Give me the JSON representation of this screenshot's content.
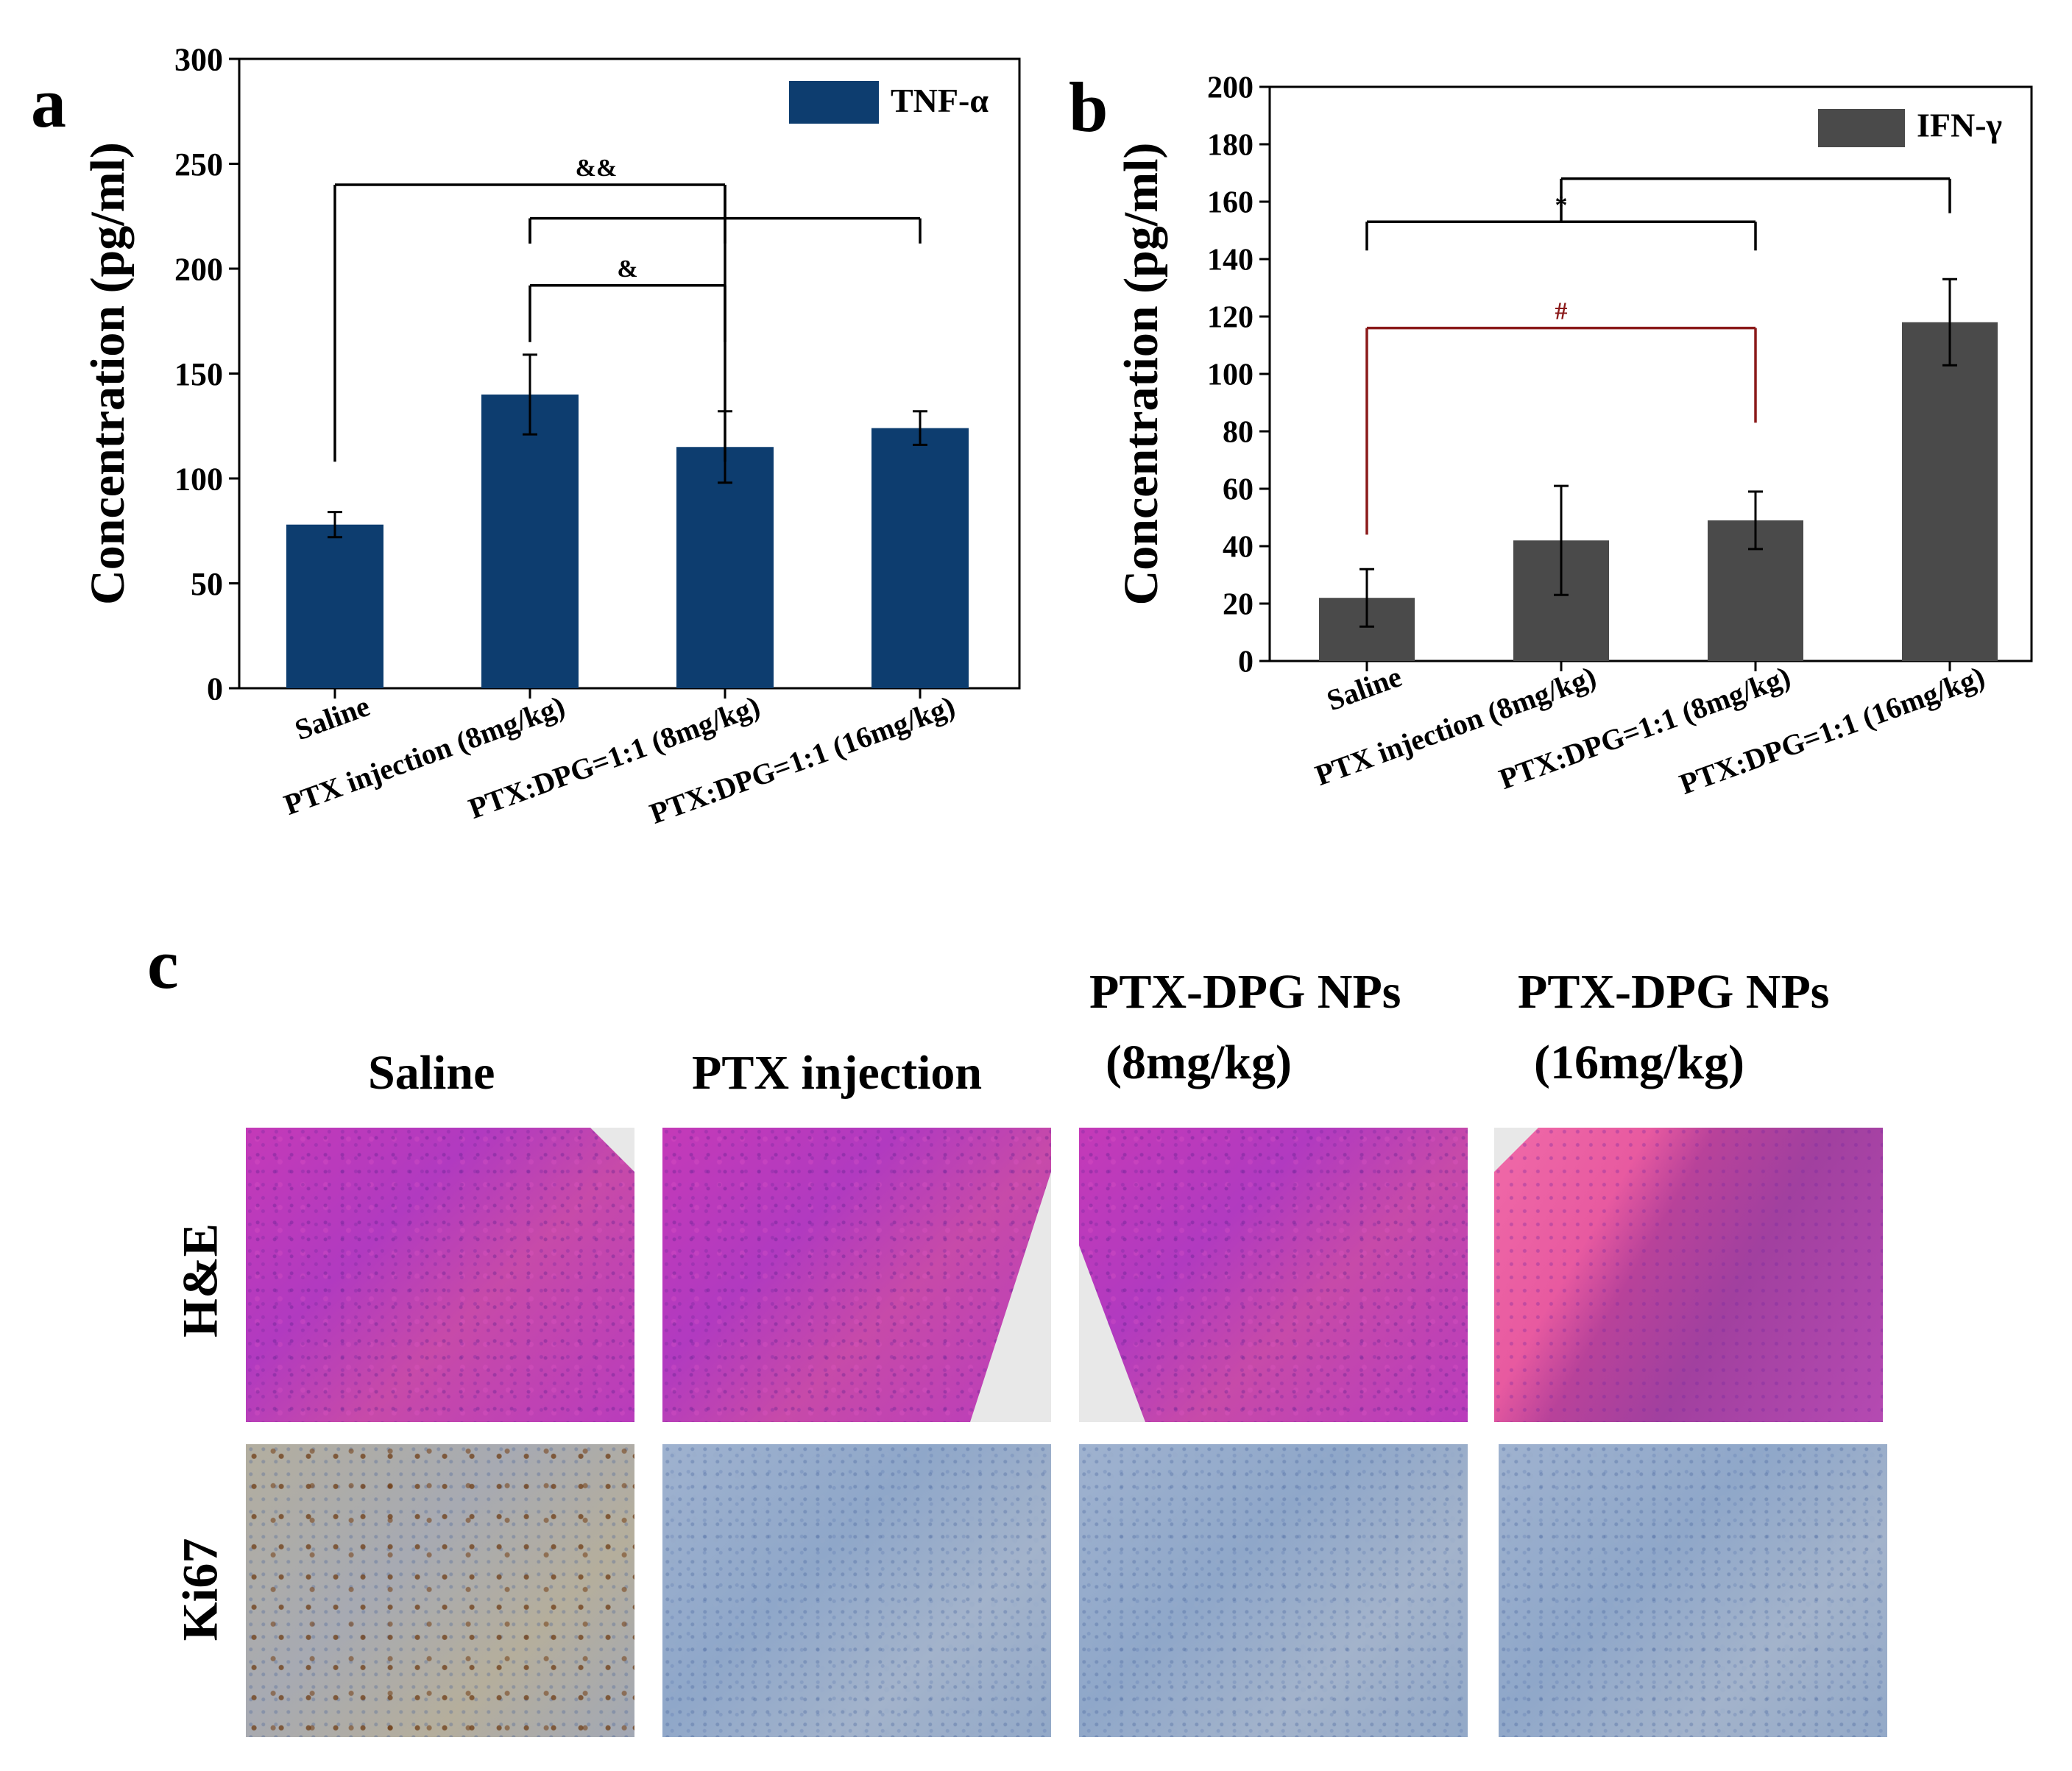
{
  "chart_data": [
    {
      "panel": "a",
      "type": "bar",
      "categories": [
        "Saline",
        "PTX injection (8mg/kg)",
        "PTX:DPG=1:1 (8mg/kg)",
        "PTX:DPG=1:1 (16mg/kg)"
      ],
      "series": [
        {
          "name": "TNF-α",
          "color": "#0d3d6f",
          "values": [
            78,
            140,
            115,
            124
          ],
          "errors": [
            6,
            19,
            17,
            8
          ]
        }
      ],
      "ylabel": "Concentration (pg/ml)",
      "xlabel": "",
      "ylim": [
        0,
        300
      ],
      "yticks": [
        0,
        50,
        100,
        150,
        200,
        250,
        300
      ],
      "legend_position": "top-right",
      "annotations": [
        {
          "label": "&&",
          "from": 0,
          "to": 2,
          "level": 240,
          "drop_to": 108
        },
        {
          "label": "",
          "from": 1,
          "to": 3,
          "level": 224,
          "drop_to": 212
        },
        {
          "label": "&",
          "from": 1,
          "to": 2,
          "level": 192,
          "drop_to": 165
        }
      ]
    },
    {
      "panel": "b",
      "type": "bar",
      "categories": [
        "Saline",
        "PTX injection (8mg/kg)",
        "PTX:DPG=1:1 (8mg/kg)",
        "PTX:DPG=1:1 (16mg/kg)"
      ],
      "series": [
        {
          "name": "IFN-γ",
          "color": "#4a4a4a",
          "values": [
            22,
            42,
            49,
            118
          ],
          "errors": [
            10,
            19,
            10,
            15
          ]
        }
      ],
      "ylabel": "Concentration (pg/ml)",
      "xlabel": "",
      "ylim": [
        0,
        200
      ],
      "yticks": [
        0,
        20,
        40,
        60,
        80,
        100,
        120,
        140,
        160,
        180,
        200
      ],
      "legend_position": "top-right",
      "annotations": [
        {
          "label": "*",
          "from": 0,
          "to": 2,
          "level": 153,
          "drop_to": 143,
          "color": "#000000"
        },
        {
          "label": "",
          "from": 1.0,
          "to": 3,
          "level": 168,
          "drop_to": 156,
          "color": "#000000",
          "from_x_mid": true
        },
        {
          "label": "#",
          "from": 0,
          "to": 2,
          "level": 116,
          "drop_to": 44,
          "drop_to_right": 83,
          "color": "#8b1a1a"
        }
      ]
    }
  ],
  "panel_c": {
    "letter": "c",
    "columns": [
      {
        "line1": "Saline",
        "line2": ""
      },
      {
        "line1": "PTX injection",
        "line2": ""
      },
      {
        "line1": "PTX-DPG NPs",
        "line2": "(8mg/kg)"
      },
      {
        "line1": "PTX-DPG NPs",
        "line2": "(16mg/kg)"
      }
    ],
    "rows": [
      "H&E",
      "Ki67"
    ]
  },
  "colors": {
    "tnf": "#0d3d6f",
    "ifn": "#4a4a4a",
    "sig_red": "#8b1a1a"
  }
}
